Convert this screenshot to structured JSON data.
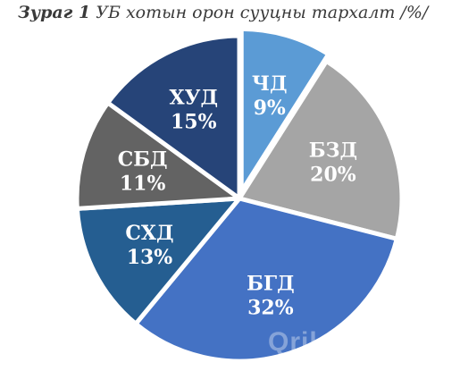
{
  "title": {
    "figure_number": "Зураг 1",
    "text": "УБ хотын орон сууцны тархалт /%/"
  },
  "chart_data": {
    "type": "pie",
    "title": "Зураг 1 УБ хотын орон сууцны тархалт /%/",
    "slices": [
      {
        "name": "ЧД",
        "value": 9,
        "label": "9%",
        "color": "#5b9bd5",
        "exploded": true
      },
      {
        "name": "БЗД",
        "value": 20,
        "label": "20%",
        "color": "#a5a5a5",
        "exploded": false
      },
      {
        "name": "БГД",
        "value": 32,
        "label": "32%",
        "color": "#4472c4",
        "exploded": false
      },
      {
        "name": "СХД",
        "value": 13,
        "label": "13%",
        "color": "#255e91",
        "exploded": false
      },
      {
        "name": "СБД",
        "value": 11,
        "label": "11%",
        "color": "#636363",
        "exploded": false
      },
      {
        "name": "ХУД",
        "value": 15,
        "label": "15%",
        "color": "#264478",
        "exploded": false
      }
    ],
    "start_angle_deg": 0,
    "direction": "clockwise",
    "legend": "none"
  },
  "watermark": {
    "text": "Qrile"
  }
}
